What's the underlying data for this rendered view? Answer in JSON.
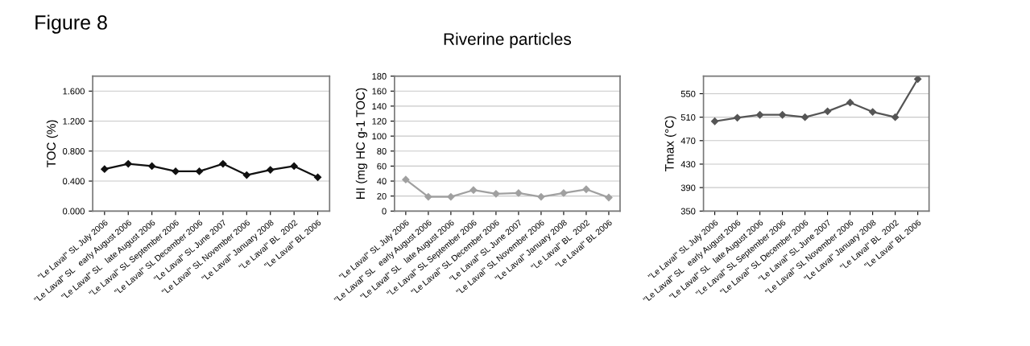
{
  "chart_data": [
    {
      "type": "line",
      "annotations": [
        "Figure 8"
      ],
      "ylabel": "TOC (%)",
      "categories": [
        "\"Le Laval\" SL July 2006",
        "\"Le Laval\" SL   early August 2006",
        "\"Le Laval\" SL   late August 2006",
        "\"Le Laval\" SL September 2006",
        "\"Le Laval\" SL December 2006",
        "\"Le Laval\" SL June 2007",
        "\"Le Laval\" SL November 2006",
        "\"Le Laval\" January 2008",
        "\"Le Laval\" BL  2002",
        "\"Le Laval\" BL 2006"
      ],
      "series": [
        {
          "color": "#111111",
          "values": [
            0.56,
            0.63,
            0.6,
            0.53,
            0.53,
            0.63,
            0.48,
            0.55,
            0.6,
            0.45
          ]
        }
      ],
      "ylim": [
        0,
        1.8
      ],
      "yticks": [
        {
          "value": 0,
          "label": "0.000"
        },
        {
          "value": 0.4,
          "label": "0.400"
        },
        {
          "value": 0.8,
          "label": "0.800"
        },
        {
          "value": 1.2,
          "label": "1.200"
        },
        {
          "value": 1.6,
          "label": "1.600"
        }
      ],
      "grid": "y",
      "marker": "diamond",
      "line_style": "solid"
    },
    {
      "type": "line",
      "title": "Riverine particles",
      "ylabel": "HI (mg HC g-1 TOC)",
      "categories": [
        "\"Le Laval\" SL July 2006",
        "\"Le Laval\" SL   early August 2006",
        "\"Le Laval\" SL   late August 2006",
        "\"Le Laval\" SL September 2006",
        "\"Le Laval\" SL December 2006",
        "\"Le Laval\" SL June 2007",
        "\"Le Laval\" SL November 2006",
        "\"Le Laval\" January 2008",
        "\"Le Laval\" BL  2002",
        "\"Le Laval\" BL 2006"
      ],
      "series": [
        {
          "color": "#a0a0a0",
          "values": [
            42,
            19,
            19,
            28,
            23,
            24,
            19,
            24,
            29,
            18
          ]
        }
      ],
      "ylim": [
        0,
        180
      ],
      "yticks": [
        0,
        20,
        40,
        60,
        80,
        100,
        120,
        140,
        160,
        180
      ],
      "grid": "y",
      "marker": "diamond",
      "line_style": "solid"
    },
    {
      "type": "line",
      "ylabel": "Tmax (°C)",
      "categories": [
        "\"Le Laval\" SL July 2006",
        "\"Le Laval\" SL   early August 2006",
        "\"Le Laval\" SL   late August 2006",
        "\"Le Laval\" SL September 2006",
        "\"Le Laval\" SL December 2006",
        "\"Le Laval\" SL June 2007",
        "\"Le Laval\" SL November 2006",
        "\"Le Laval\" January 2008",
        "\"Le Laval\" BL  2002",
        "\"Le Laval\" BL 2006"
      ],
      "series": [
        {
          "color": "#555555",
          "values": [
            503,
            509,
            514,
            514,
            510,
            520,
            535,
            519,
            510,
            575
          ]
        }
      ],
      "ylim": [
        350,
        580
      ],
      "yticks": [
        350,
        390,
        430,
        470,
        510,
        550
      ],
      "grid": "y",
      "marker": "diamond",
      "line_style": "solid"
    }
  ]
}
